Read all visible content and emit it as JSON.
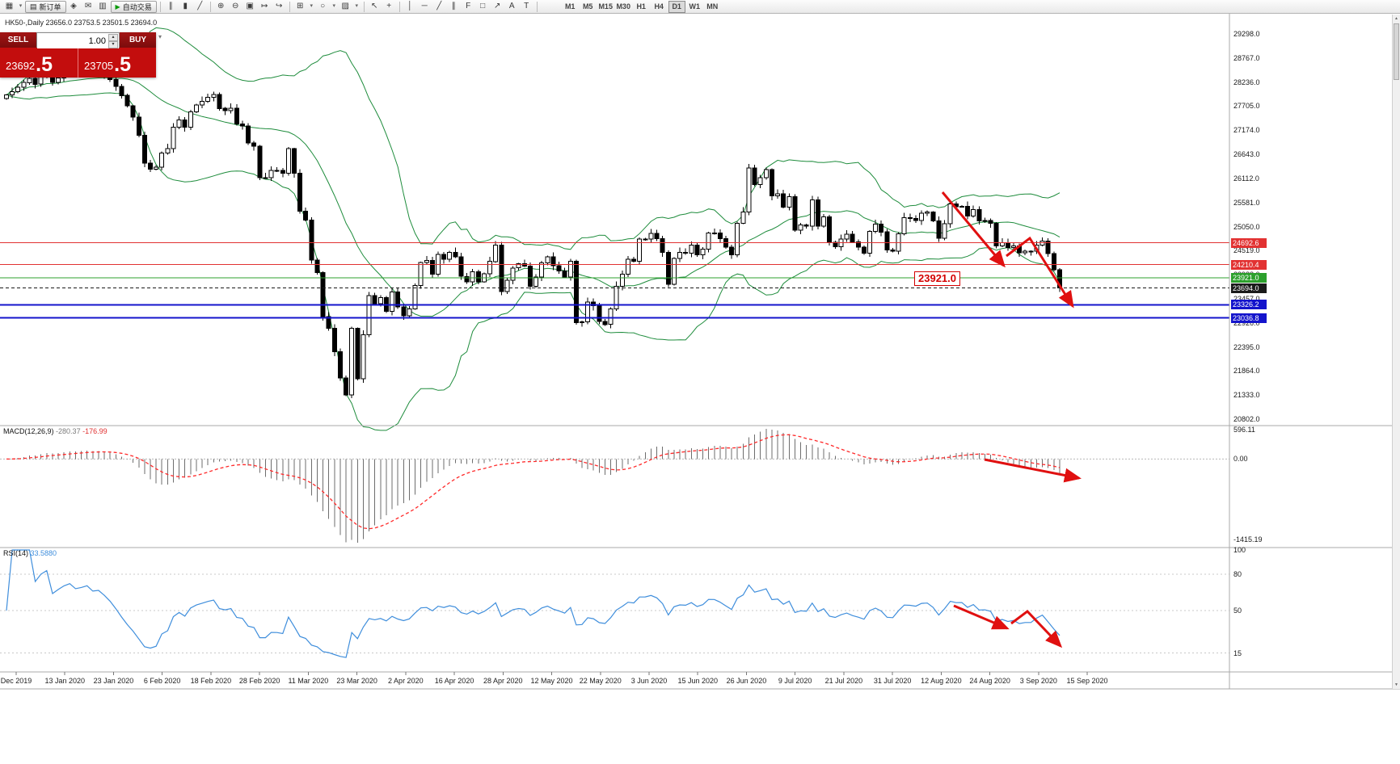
{
  "toolbar": {
    "new_order": "新订单",
    "auto_trading": "自动交易",
    "timeframes": [
      "M1",
      "M5",
      "M15",
      "M30",
      "H1",
      "H4",
      "D1",
      "W1",
      "MN"
    ],
    "active_timeframe": "D1"
  },
  "icons": {
    "new_chart": "▦",
    "caret": "▾",
    "new_order": "▤",
    "alerts": "◈",
    "mail": "✉",
    "market_watch": "▥",
    "play": "▶",
    "bar_chart": "∥",
    "candles": "▮",
    "line_chart": "╱",
    "zoom_in": "⊕",
    "zoom_out": "⊖",
    "tile": "▣",
    "auto_scroll": "↦",
    "shift": "↪",
    "indicators": "⊞",
    "periods": "○",
    "templates": "▨",
    "cursor": "↖",
    "crosshair": "+",
    "vline": "│",
    "hline": "─",
    "trend": "╱",
    "channel": "∥",
    "fibo": "F",
    "shapes": "□",
    "arrows": "↗",
    "text": "A",
    "label": "T",
    "scroll_up": "▲",
    "scroll_down": "▼",
    "widget_caret": "▾"
  },
  "trade_panel": {
    "sell_label": "SELL",
    "buy_label": "BUY",
    "volume": "1.00",
    "sell_price_main": "23692",
    "sell_price_big": ".5",
    "buy_price_main": "23705",
    "buy_price_big": ".5"
  },
  "chart": {
    "symbol_line": "HK50-,Daily  23656.0 23753.5 23501.5 23694.0",
    "annotation": "23921.0"
  },
  "indicators_panel": {
    "macd_name": "MACD(12,26,9)",
    "macd_main": "-280.37",
    "macd_signal": "-176.99",
    "rsi_name": "RSI(14)",
    "rsi_value": "33.5880"
  },
  "chart_data": {
    "type": "candlestick",
    "symbol": "HK50",
    "timeframe": "Daily",
    "ohlc_display": {
      "open": "23656.0",
      "high": "23753.5",
      "low": "23501.5",
      "close": "23694.0"
    },
    "y_axis": {
      "min": 20802,
      "max": 29298,
      "tick_labels": [
        "29298.0",
        "28767.0",
        "28236.0",
        "27705.0",
        "27174.0",
        "26643.0",
        "26112.0",
        "25581.0",
        "25050.0",
        "24519.0",
        "23988.0",
        "23457.0",
        "22926.0",
        "22395.0",
        "21864.0",
        "21333.0",
        "20802.0"
      ]
    },
    "x_axis_dates": [
      "Dec 2019",
      "13 Jan 2020",
      "23 Jan 2020",
      "6 Feb 2020",
      "18 Feb 2020",
      "28 Feb 2020",
      "11 Mar 2020",
      "23 Mar 2020",
      "2 Apr 2020",
      "16 Apr 2020",
      "28 Apr 2020",
      "12 May 2020",
      "22 May 2020",
      "3 Jun 2020",
      "15 Jun 2020",
      "26 Jun 2020",
      "9 Jul 2020",
      "21 Jul 2020",
      "31 Jul 2020",
      "12 Aug 2020",
      "24 Aug 2020",
      "3 Sep 2020",
      "15 Sep 2020"
    ],
    "closes": [
      27950,
      28022,
      28120,
      28225,
      28319,
      28189,
      28343,
      28451,
      28226,
      28330,
      28438,
      28518,
      28440,
      28485,
      28550,
      28460,
      28483,
      28400,
      28295,
      28141,
      27940,
      27709,
      27460,
      27060,
      26450,
      26312,
      26356,
      26675,
      26767,
      27241,
      27404,
      27241,
      27583,
      27730,
      27815,
      27900,
      27959,
      27655,
      27609,
      27655,
      27309,
      27267,
      26893,
      26820,
      26129,
      26130,
      26292,
      26285,
      26223,
      26767,
      26222,
      25392,
      25192,
      24309,
      24033,
      23063,
      22805,
      22292,
      21709,
      21340,
      22805,
      21696,
      22663,
      23527,
      23352,
      23484,
      23175,
      23603,
      23280,
      23085,
      23236,
      23749,
      24253,
      24300,
      24000,
      24435,
      24327,
      24484,
      24380,
      23950,
      23830,
      24052,
      23831,
      24006,
      24280,
      24643,
      23613,
      23868,
      24137,
      24230,
      24180,
      23730,
      23937,
      24245,
      24380,
      24188,
      24070,
      23934,
      24280,
      22930,
      22952,
      23384,
      23301,
      22961,
      22890,
      23236,
      23732,
      23995,
      24325,
      24280,
      24770,
      24776,
      24900,
      24780,
      24480,
      23780,
      24344,
      24481,
      24464,
      24643,
      24431,
      24550,
      24907,
      24906,
      24781,
      24600,
      24427,
      25124,
      25373,
      26339,
      25975,
      26129,
      26308,
      25727,
      25772,
      25477,
      25711,
      24970,
      25089,
      25057,
      25635,
      25057,
      25263,
      24705,
      24603,
      24772,
      24883,
      24710,
      24595,
      24460,
      24946,
      25102,
      24930,
      24532,
      24506,
      24890,
      25244,
      25230,
      25183,
      25347,
      25367,
      25178,
      24791,
      25114,
      25551,
      25486,
      25492,
      25281,
      25422,
      25177,
      25185,
      25120,
      24624,
      24695,
      24590,
      24624,
      24468,
      24503,
      24503,
      24640,
      24732,
      24455,
      24100,
      23694
    ],
    "horizontal_levels": [
      {
        "label": "24692.6",
        "price": 24692.6,
        "color": "#e23232",
        "line": "solid",
        "width": 1
      },
      {
        "label": "24210.4",
        "price": 24210.4,
        "color": "#e23232",
        "line": "solid",
        "width": 1
      },
      {
        "label": "23921.0",
        "price": 23921.0,
        "color": "#2ca02c",
        "line": "solid",
        "width": 1
      },
      {
        "label": "23694.0",
        "price": 23694.0,
        "color": "#1a1a1a",
        "line": "dashed",
        "width": 1
      },
      {
        "label": "23326.2",
        "price": 23326.2,
        "color": "#1414cc",
        "line": "solid",
        "width": 2
      },
      {
        "label": "23036.8",
        "price": 23036.8,
        "color": "#1414cc",
        "line": "solid",
        "width": 2
      }
    ],
    "indicators": {
      "bollinger": {
        "period": 20,
        "deviation": 2,
        "color": "#1e8c3c"
      },
      "macd": {
        "fast": 12,
        "slow": 26,
        "signal": 9,
        "current_main": -280.37,
        "current_signal": -176.99,
        "axis_labels": [
          "596.11",
          "0.00",
          "-1415.19"
        ]
      },
      "rsi": {
        "period": 14,
        "current": 33.588,
        "axis_labels": [
          "100",
          "80",
          "50",
          "15"
        ],
        "levels": [
          100,
          80,
          50,
          15
        ]
      }
    },
    "arrow_color": "#e01010",
    "trend_arrows": [
      {
        "points": [
          [
            1166,
            238
          ],
          [
            1242,
            329
          ]
        ]
      },
      {
        "points": [
          [
            1245,
            317
          ],
          [
            1274,
            295
          ],
          [
            1327,
            379
          ]
        ]
      },
      {
        "points": [
          [
            1218,
            569
          ],
          [
            1335,
            592
          ]
        ]
      },
      {
        "points": [
          [
            1180,
            750
          ],
          [
            1246,
            778
          ]
        ]
      },
      {
        "points": [
          [
            1251,
            772
          ],
          [
            1271,
            757
          ],
          [
            1312,
            800
          ]
        ]
      }
    ]
  }
}
